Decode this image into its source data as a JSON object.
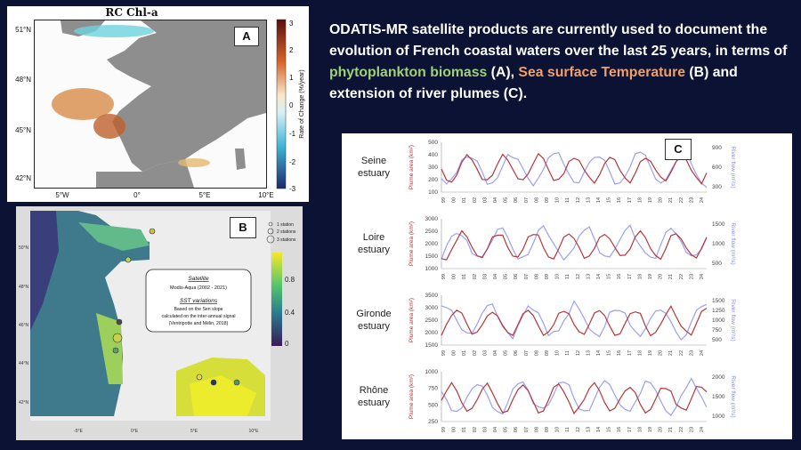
{
  "slide": {
    "headline": {
      "part1": "ODATIS-MR satellite products are currently used to document the evolution of French coastal waters over the last 25 years, in terms of ",
      "phyto": "phytoplankton biomass",
      "part2": " (A), ",
      "sst": "Sea surface Temperature",
      "part3": " (B) and extension of river plumes (C)."
    },
    "colors": {
      "background": "#0c1233",
      "phyto": "#9fd07a",
      "sst": "#f0a068",
      "plume": "#b5373a",
      "river": "#8a8ef0"
    }
  },
  "panelA": {
    "label": "A",
    "title": "RC Chl-a",
    "lat_ticks": [
      "51°N",
      "48°N",
      "45°N",
      "42°N"
    ],
    "lon_ticks": [
      "5°W",
      "0°",
      "5°E",
      "10°E"
    ],
    "colorbar_label": "Rate of Change (%/year)",
    "colorbar_ticks": [
      "3",
      "2",
      "1",
      "0",
      "-1",
      "-2",
      "-3"
    ]
  },
  "panelB": {
    "label": "B",
    "legend": [
      "1 station",
      "2 stations",
      "3 stations"
    ],
    "info_title": "Satellite",
    "info_line1": "Modis-Aqua (2002 - 2021)",
    "info_title2": "SST variations",
    "info_line2": "Based on the Sen slope",
    "info_line3": "calculated on the inter-annual signal",
    "info_line4": "(Ventripotte and Mélin, 2018)",
    "colorbar_ticks": [
      "0.8",
      "0.4",
      "0"
    ],
    "lat_ticks": [
      "50°N",
      "48°N",
      "46°N",
      "44°N",
      "42°N"
    ],
    "lon_ticks": [
      "-5°E",
      "0°E",
      "5°E",
      "10°E"
    ]
  },
  "panelC": {
    "label": "C",
    "x_ticks": [
      "99",
      "00",
      "01",
      "02",
      "03",
      "04",
      "05",
      "06",
      "07",
      "08",
      "09",
      "10",
      "11",
      "12",
      "13",
      "14",
      "15",
      "16",
      "17",
      "18",
      "19",
      "20",
      "21",
      "22",
      "23",
      "24"
    ],
    "rows": [
      {
        "estuary": "Seine",
        "line2": "estuary",
        "left_axis": "Plume area (km²)",
        "right_axis": "River flow (m³/s)",
        "left_ticks": [
          "500",
          "400",
          "300",
          "200",
          "100"
        ],
        "right_ticks": [
          "900",
          "600",
          "300"
        ]
      },
      {
        "estuary": "Loire",
        "line2": "estuary",
        "left_axis": "Plume area (km²)",
        "right_axis": "River flow (m³/s)",
        "left_ticks": [
          "3000",
          "2500",
          "2000",
          "1500",
          "1000"
        ],
        "right_ticks": [
          "1500",
          "1000",
          "500"
        ]
      },
      {
        "estuary": "Gironde",
        "line2": "estuary",
        "left_axis": "Plume area (km²)",
        "right_axis": "River flow (m³/s)",
        "left_ticks": [
          "3500",
          "3000",
          "2500",
          "2000",
          "1500"
        ],
        "right_ticks": [
          "1500",
          "1250",
          "1000",
          "750",
          "500"
        ]
      },
      {
        "estuary": "Rhône",
        "line2": "estuary",
        "left_axis": "Plume area (km²)",
        "right_axis": "River flow (m³/s)",
        "left_ticks": [
          "1000",
          "750",
          "500",
          "250"
        ],
        "right_ticks": [
          "2000",
          "1500",
          "1000"
        ]
      }
    ]
  }
}
